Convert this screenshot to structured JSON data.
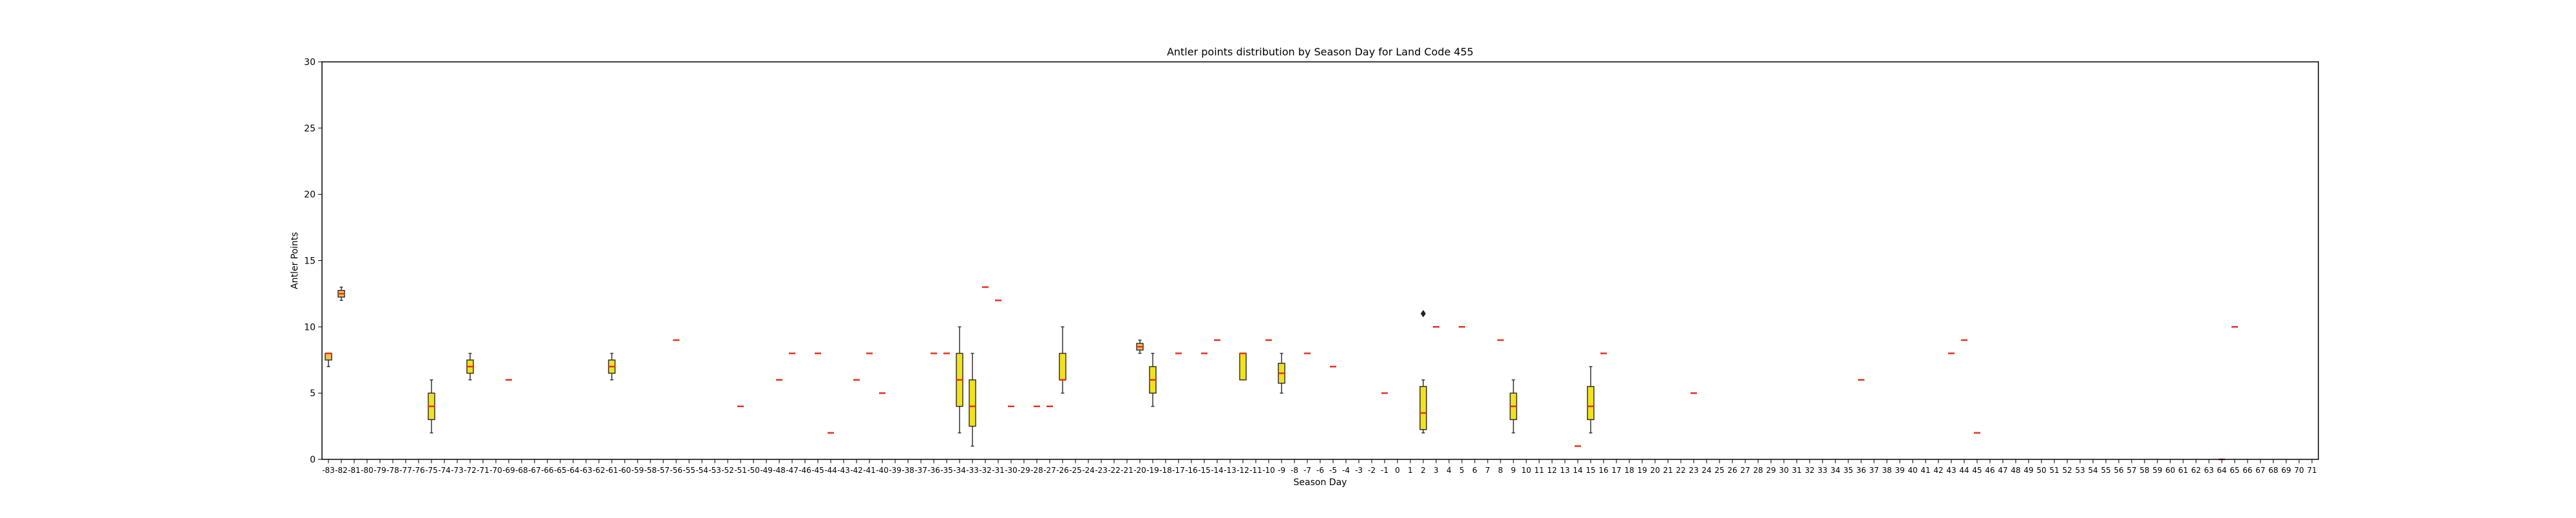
{
  "chart_data": {
    "type": "box",
    "title": "Antler points distribution by Season Day for Land Code 455",
    "xlabel": "Season Day",
    "ylabel": "Antler Points",
    "ylim": [
      0,
      30
    ],
    "yticks": [
      0,
      5,
      10,
      15,
      20,
      25,
      30
    ],
    "grid": false,
    "categories": [
      "-83",
      "-82",
      "-81",
      "-80",
      "-79",
      "-78",
      "-77",
      "-76",
      "-75",
      "-74",
      "-73",
      "-72",
      "-71",
      "-70",
      "-69",
      "-68",
      "-67",
      "-66",
      "-65",
      "-64",
      "-63",
      "-62",
      "-61",
      "-60",
      "-59",
      "-58",
      "-57",
      "-56",
      "-55",
      "-54",
      "-53",
      "-52",
      "-51",
      "-50",
      "-49",
      "-48",
      "-47",
      "-46",
      "-45",
      "-44",
      "-43",
      "-42",
      "-41",
      "-40",
      "-39",
      "-38",
      "-37",
      "-36",
      "-35",
      "-34",
      "-33",
      "-32",
      "-31",
      "-30",
      "-29",
      "-28",
      "-27",
      "-26",
      "-25",
      "-24",
      "-23",
      "-22",
      "-21",
      "-20",
      "-19",
      "-18",
      "-17",
      "-16",
      "-15",
      "-14",
      "-13",
      "-12",
      "-11",
      "-10",
      "-9",
      "-8",
      "-7",
      "-6",
      "-5",
      "-4",
      "-3",
      "-2",
      "-1",
      "0",
      "1",
      "2",
      "3",
      "4",
      "5",
      "6",
      "7",
      "8",
      "9",
      "10",
      "11",
      "12",
      "13",
      "14",
      "15",
      "16",
      "17",
      "18",
      "19",
      "20",
      "21",
      "22",
      "23",
      "24",
      "25",
      "26",
      "27",
      "28",
      "29",
      "30",
      "31",
      "32",
      "33",
      "34",
      "35",
      "36",
      "37",
      "38",
      "39",
      "40",
      "41",
      "42",
      "43",
      "44",
      "45",
      "46",
      "47",
      "48",
      "49",
      "50",
      "51",
      "52",
      "53",
      "54",
      "55",
      "56",
      "57",
      "58",
      "59",
      "60",
      "61",
      "62",
      "63",
      "64",
      "65",
      "66",
      "67",
      "68",
      "69",
      "70",
      "71"
    ],
    "boxes": [
      {
        "x": "-83",
        "whislo": 7,
        "q1": 7.5,
        "med": 8,
        "q3": 8,
        "whishi": 8,
        "fliers": []
      },
      {
        "x": "-82",
        "whislo": 12,
        "q1": 12.25,
        "med": 12.5,
        "q3": 12.75,
        "whishi": 13,
        "fliers": []
      },
      {
        "x": "-75",
        "whislo": 2,
        "q1": 3,
        "med": 4,
        "q3": 5,
        "whishi": 6,
        "fliers": []
      },
      {
        "x": "-72",
        "whislo": 6,
        "q1": 6.5,
        "med": 7,
        "q3": 7.5,
        "whishi": 8,
        "fliers": []
      },
      {
        "x": "-69",
        "whislo": 6,
        "q1": 6,
        "med": 6,
        "q3": 6,
        "whishi": 6,
        "fliers": []
      },
      {
        "x": "-61",
        "whislo": 6,
        "q1": 6.5,
        "med": 7,
        "q3": 7.5,
        "whishi": 8,
        "fliers": []
      },
      {
        "x": "-56",
        "whislo": 9,
        "q1": 9,
        "med": 9,
        "q3": 9,
        "whishi": 9,
        "fliers": []
      },
      {
        "x": "-51",
        "whislo": 4,
        "q1": 4,
        "med": 4,
        "q3": 4,
        "whishi": 4,
        "fliers": []
      },
      {
        "x": "-48",
        "whislo": 6,
        "q1": 6,
        "med": 6,
        "q3": 6,
        "whishi": 6,
        "fliers": []
      },
      {
        "x": "-47",
        "whislo": 8,
        "q1": 8,
        "med": 8,
        "q3": 8,
        "whishi": 8,
        "fliers": []
      },
      {
        "x": "-45",
        "whislo": 8,
        "q1": 8,
        "med": 8,
        "q3": 8,
        "whishi": 8,
        "fliers": []
      },
      {
        "x": "-44",
        "whislo": 2,
        "q1": 2,
        "med": 2,
        "q3": 2,
        "whishi": 2,
        "fliers": []
      },
      {
        "x": "-42",
        "whislo": 6,
        "q1": 6,
        "med": 6,
        "q3": 6,
        "whishi": 6,
        "fliers": []
      },
      {
        "x": "-41",
        "whislo": 8,
        "q1": 8,
        "med": 8,
        "q3": 8,
        "whishi": 8,
        "fliers": []
      },
      {
        "x": "-40",
        "whislo": 5,
        "q1": 5,
        "med": 5,
        "q3": 5,
        "whishi": 5,
        "fliers": []
      },
      {
        "x": "-36",
        "whislo": 8,
        "q1": 8,
        "med": 8,
        "q3": 8,
        "whishi": 8,
        "fliers": []
      },
      {
        "x": "-35",
        "whislo": 8,
        "q1": 8,
        "med": 8,
        "q3": 8,
        "whishi": 8,
        "fliers": []
      },
      {
        "x": "-34",
        "whislo": 2,
        "q1": 4,
        "med": 6,
        "q3": 8,
        "whishi": 10,
        "fliers": []
      },
      {
        "x": "-33",
        "whislo": 1,
        "q1": 2.5,
        "med": 4,
        "q3": 6,
        "whishi": 8,
        "fliers": []
      },
      {
        "x": "-32",
        "whislo": 13,
        "q1": 13,
        "med": 13,
        "q3": 13,
        "whishi": 13,
        "fliers": []
      },
      {
        "x": "-31",
        "whislo": 12,
        "q1": 12,
        "med": 12,
        "q3": 12,
        "whishi": 12,
        "fliers": []
      },
      {
        "x": "-30",
        "whislo": 4,
        "q1": 4,
        "med": 4,
        "q3": 4,
        "whishi": 4,
        "fliers": []
      },
      {
        "x": "-28",
        "whislo": 4,
        "q1": 4,
        "med": 4,
        "q3": 4,
        "whishi": 4,
        "fliers": []
      },
      {
        "x": "-27",
        "whislo": 4,
        "q1": 4,
        "med": 4,
        "q3": 4,
        "whishi": 4,
        "fliers": []
      },
      {
        "x": "-26",
        "whislo": 5,
        "q1": 6,
        "med": 6,
        "q3": 8,
        "whishi": 10,
        "fliers": []
      },
      {
        "x": "-20",
        "whislo": 8,
        "q1": 8.25,
        "med": 8.5,
        "q3": 8.75,
        "whishi": 9,
        "fliers": []
      },
      {
        "x": "-19",
        "whislo": 4,
        "q1": 5,
        "med": 6,
        "q3": 7,
        "whishi": 8,
        "fliers": []
      },
      {
        "x": "-17",
        "whislo": 8,
        "q1": 8,
        "med": 8,
        "q3": 8,
        "whishi": 8,
        "fliers": []
      },
      {
        "x": "-15",
        "whislo": 8,
        "q1": 8,
        "med": 8,
        "q3": 8,
        "whishi": 8,
        "fliers": []
      },
      {
        "x": "-14",
        "whislo": 9,
        "q1": 9,
        "med": 9,
        "q3": 9,
        "whishi": 9,
        "fliers": []
      },
      {
        "x": "-12",
        "whislo": 6,
        "q1": 6,
        "med": 8,
        "q3": 8,
        "whishi": 8,
        "fliers": []
      },
      {
        "x": "-10",
        "whislo": 9,
        "q1": 9,
        "med": 9,
        "q3": 9,
        "whishi": 9,
        "fliers": []
      },
      {
        "x": "-9",
        "whislo": 5,
        "q1": 5.75,
        "med": 6.5,
        "q3": 7.25,
        "whishi": 8,
        "fliers": []
      },
      {
        "x": "-7",
        "whislo": 8,
        "q1": 8,
        "med": 8,
        "q3": 8,
        "whishi": 8,
        "fliers": []
      },
      {
        "x": "-5",
        "whislo": 7,
        "q1": 7,
        "med": 7,
        "q3": 7,
        "whishi": 7,
        "fliers": []
      },
      {
        "x": "-1",
        "whislo": 5,
        "q1": 5,
        "med": 5,
        "q3": 5,
        "whishi": 5,
        "fliers": []
      },
      {
        "x": "2",
        "whislo": 2,
        "q1": 2.25,
        "med": 3.5,
        "q3": 5.5,
        "whishi": 6,
        "fliers": [
          11
        ]
      },
      {
        "x": "3",
        "whislo": 10,
        "q1": 10,
        "med": 10,
        "q3": 10,
        "whishi": 10,
        "fliers": []
      },
      {
        "x": "5",
        "whislo": 10,
        "q1": 10,
        "med": 10,
        "q3": 10,
        "whishi": 10,
        "fliers": []
      },
      {
        "x": "8",
        "whislo": 9,
        "q1": 9,
        "med": 9,
        "q3": 9,
        "whishi": 9,
        "fliers": []
      },
      {
        "x": "9",
        "whislo": 2,
        "q1": 3,
        "med": 4,
        "q3": 5,
        "whishi": 6,
        "fliers": []
      },
      {
        "x": "14",
        "whislo": 1,
        "q1": 1,
        "med": 1,
        "q3": 1,
        "whishi": 1,
        "fliers": []
      },
      {
        "x": "15",
        "whislo": 2,
        "q1": 3,
        "med": 4,
        "q3": 5.5,
        "whishi": 7,
        "fliers": []
      },
      {
        "x": "16",
        "whislo": 8,
        "q1": 8,
        "med": 8,
        "q3": 8,
        "whishi": 8,
        "fliers": []
      },
      {
        "x": "23",
        "whislo": 5,
        "q1": 5,
        "med": 5,
        "q3": 5,
        "whishi": 5,
        "fliers": []
      },
      {
        "x": "36",
        "whislo": 6,
        "q1": 6,
        "med": 6,
        "q3": 6,
        "whishi": 6,
        "fliers": []
      },
      {
        "x": "43",
        "whislo": 8,
        "q1": 8,
        "med": 8,
        "q3": 8,
        "whishi": 8,
        "fliers": []
      },
      {
        "x": "44",
        "whislo": 9,
        "q1": 9,
        "med": 9,
        "q3": 9,
        "whishi": 9,
        "fliers": []
      },
      {
        "x": "45",
        "whislo": 2,
        "q1": 2,
        "med": 2,
        "q3": 2,
        "whishi": 2,
        "fliers": []
      },
      {
        "x": "64",
        "whislo": 0,
        "q1": 0,
        "med": 0,
        "q3": 0,
        "whishi": 0,
        "fliers": []
      },
      {
        "x": "65",
        "whislo": 10,
        "q1": 10,
        "med": 10,
        "q3": 10,
        "whishi": 10,
        "fliers": []
      }
    ],
    "colors": {
      "box_fill": "#f2e21a",
      "box_fill_light": "#f0c44a",
      "median": "#e8301c",
      "frame": "#000000"
    }
  }
}
